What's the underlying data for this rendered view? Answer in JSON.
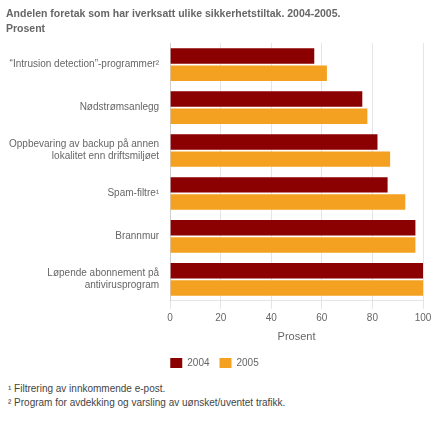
{
  "chart_data": {
    "type": "bar",
    "orientation": "horizontal",
    "title": "Andelen foretak som har iverksatt ulike sikkerhetstiltak. 2004-2005.",
    "subtitle": "Prosent",
    "categories": [
      "“Intrusion detection”-programmer²",
      "Nødstrømsanlegg",
      "Oppbevaring av backup på annen\nlokalitet enn driftsmiljøet",
      "Spam-filtre¹",
      "Brannmur",
      "Løpende abonnement på\nantivirusprogram"
    ],
    "series": [
      {
        "name": "2004",
        "color": "#8B0000",
        "values": [
          57,
          76,
          82,
          86,
          97,
          100
        ]
      },
      {
        "name": "2005",
        "color": "#F4A020",
        "values": [
          62,
          78,
          87,
          93,
          97,
          100
        ]
      }
    ],
    "xlabel": "Prosent",
    "xlim": [
      0,
      100
    ],
    "xticks": [
      0,
      20,
      40,
      60,
      80,
      100
    ],
    "grid": true,
    "legend": "bottom",
    "annotations": [
      "¹ Filtrering av innkommende e-post.",
      "² Program for avdekking og varsling av uønsket/uventet trafikk."
    ]
  }
}
